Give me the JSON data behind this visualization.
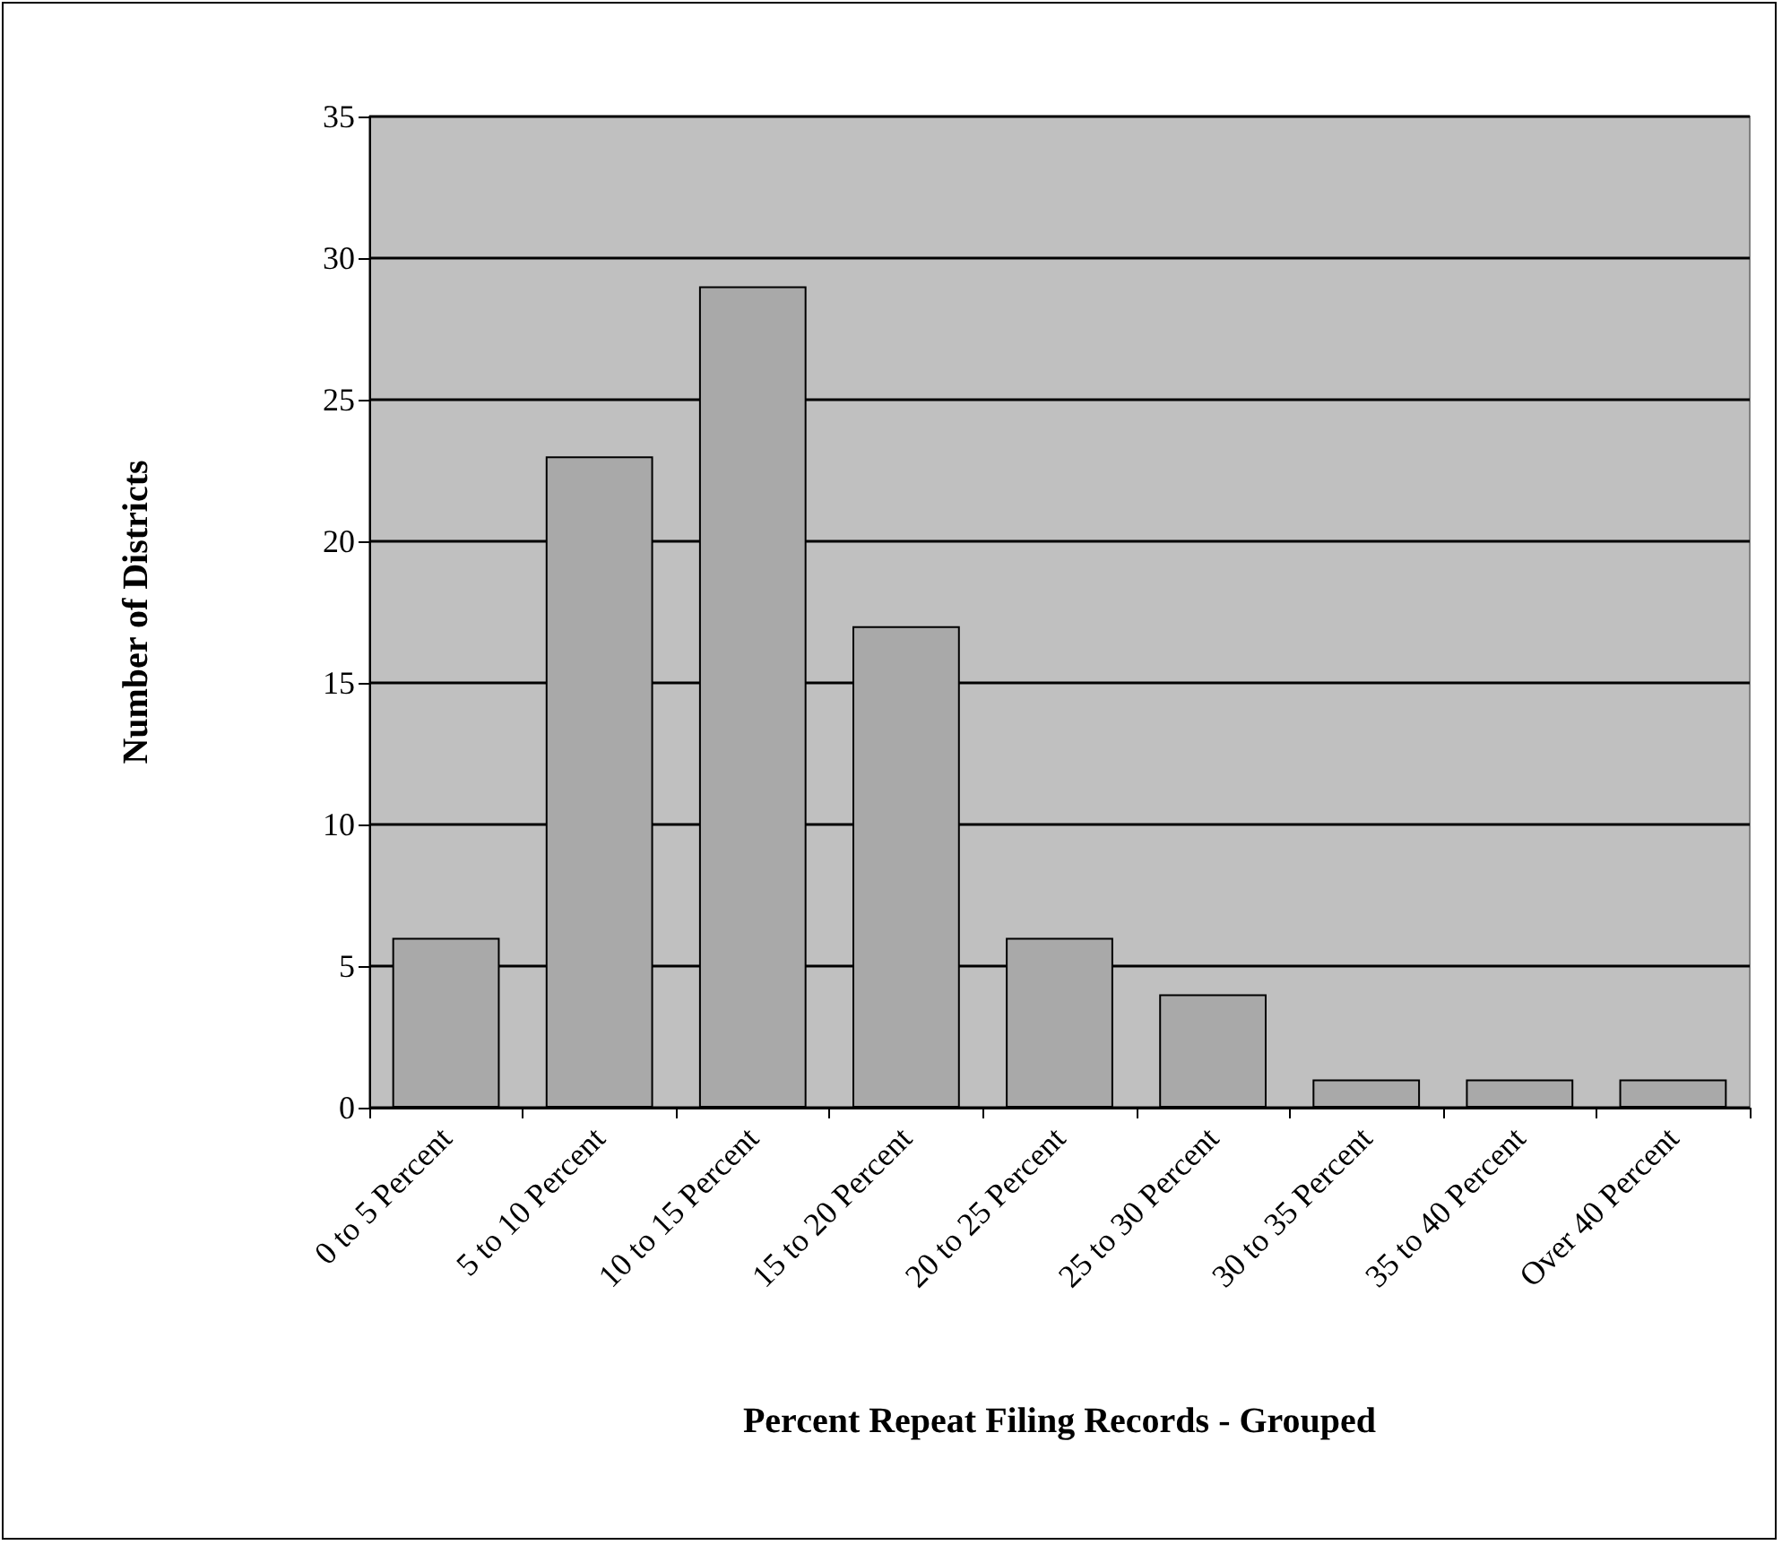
{
  "chart_data": {
    "type": "bar",
    "xlabel": "Percent Repeat Filing Records - Grouped",
    "ylabel": "Number of Districts",
    "categories": [
      "0 to 5 Percent",
      "5 to 10 Percent",
      "10 to 15 Percent",
      "15 to 20 Percent",
      "20 to 25 Percent",
      "25 to 30 Percent",
      "30 to 35 Percent",
      "35 to 40 Percent",
      "Over 40 Percent"
    ],
    "values": [
      6,
      23,
      29,
      17,
      6,
      4,
      1,
      1,
      1
    ],
    "color": "#a9a9a9",
    "ylim": [
      0,
      35
    ],
    "yticks": [
      0,
      5,
      10,
      15,
      20,
      25,
      30,
      35
    ],
    "grid": "y"
  }
}
